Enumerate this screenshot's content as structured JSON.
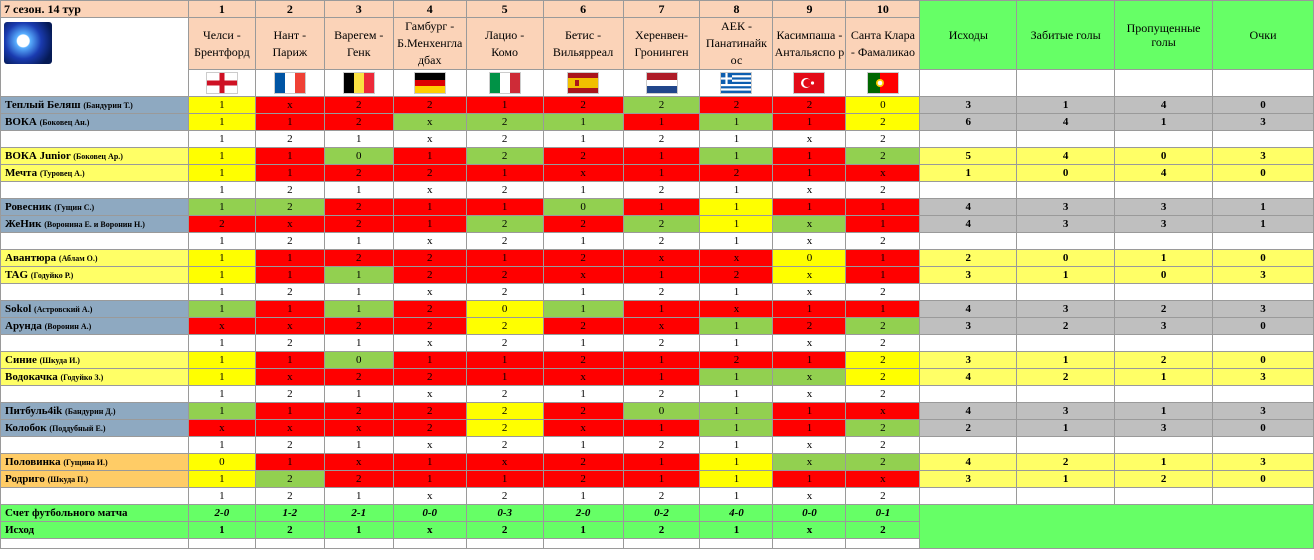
{
  "title": "7 сезон. 14 тур",
  "matches": [
    {
      "num": "1",
      "home": "Челси -",
      "away": "Брентфорд",
      "flag": "england",
      "result": "2-0",
      "outcome": "1"
    },
    {
      "num": "2",
      "home": "Нант -",
      "away": "Париж",
      "flag": "france",
      "result": "1-2",
      "outcome": "2"
    },
    {
      "num": "3",
      "home": "Варегем -",
      "away": "Генк",
      "flag": "belgium",
      "result": "2-1",
      "outcome": "1"
    },
    {
      "num": "4",
      "home": "Гамбург -",
      "away": "Б.Менхенгла дбах",
      "flag": "germany",
      "result": "0-0",
      "outcome": "x"
    },
    {
      "num": "5",
      "home": "Лацио -",
      "away": "Комо",
      "flag": "italy",
      "result": "0-3",
      "outcome": "2"
    },
    {
      "num": "6",
      "home": "Бетис -",
      "away": "Вильярреал",
      "flag": "spain",
      "result": "2-0",
      "outcome": "1"
    },
    {
      "num": "7",
      "home": "Херенвен-",
      "away": "Гронинген",
      "flag": "netherlands",
      "result": "0-2",
      "outcome": "2"
    },
    {
      "num": "8",
      "home": "АЕК -",
      "away": "Панатинайк ос",
      "flag": "greece",
      "result": "4-0",
      "outcome": "1"
    },
    {
      "num": "9",
      "home": "Касимпаша -",
      "away": "Антальяспо р",
      "flag": "turkey",
      "result": "0-0",
      "outcome": "x"
    },
    {
      "num": "10",
      "home": "Санта Клара",
      "away": "- Фамаликао",
      "flag": "portugal",
      "result": "0-1",
      "outcome": "2"
    }
  ],
  "stat_headers": [
    "Исходы",
    "Забитые голы",
    "Пропущенные голы",
    "Очки"
  ],
  "sub_row": [
    "1",
    "2",
    "1",
    "x",
    "2",
    "1",
    "2",
    "1",
    "x",
    "2"
  ],
  "groups": [
    {
      "shade": "grey",
      "players": [
        {
          "name": "Теплый Беляш",
          "owner": "(Бандурин Т.)",
          "picks": [
            "1",
            "x",
            "2",
            "2",
            "1",
            "2",
            "2",
            "2",
            "2",
            "0"
          ],
          "colors": [
            "y",
            "r",
            "r",
            "r",
            "r",
            "r",
            "g",
            "r",
            "r",
            "y"
          ],
          "stats": [
            "3",
            "1",
            "4",
            "0"
          ]
        },
        {
          "name": "ВОКА",
          "owner": "(Боковец Ан.)",
          "picks": [
            "1",
            "1",
            "2",
            "x",
            "2",
            "1",
            "1",
            "1",
            "1",
            "2"
          ],
          "colors": [
            "y",
            "r",
            "r",
            "g",
            "g",
            "g",
            "r",
            "g",
            "r",
            "y"
          ],
          "stats": [
            "6",
            "4",
            "1",
            "3"
          ]
        }
      ]
    },
    {
      "shade": "ylw",
      "players": [
        {
          "name": "ВОКА Junior",
          "owner": "(Боковец Ар.)",
          "picks": [
            "1",
            "1",
            "0",
            "1",
            "2",
            "2",
            "1",
            "1",
            "1",
            "2"
          ],
          "colors": [
            "y",
            "r",
            "g",
            "r",
            "g",
            "r",
            "r",
            "g",
            "r",
            "g"
          ],
          "stats": [
            "5",
            "4",
            "0",
            "3"
          ]
        },
        {
          "name": "Мечта",
          "owner": "(Туровец А.)",
          "picks": [
            "1",
            "1",
            "2",
            "2",
            "1",
            "x",
            "1",
            "2",
            "1",
            "x"
          ],
          "colors": [
            "y",
            "r",
            "r",
            "r",
            "r",
            "r",
            "r",
            "r",
            "r",
            "r"
          ],
          "stats": [
            "1",
            "0",
            "4",
            "0"
          ]
        }
      ]
    },
    {
      "shade": "grey",
      "players": [
        {
          "name": "Ровесник",
          "owner": "(Гущин С.)",
          "picks": [
            "1",
            "2",
            "2",
            "1",
            "1",
            "0",
            "1",
            "1",
            "1",
            "1"
          ],
          "colors": [
            "g",
            "g",
            "r",
            "r",
            "r",
            "g",
            "r",
            "y",
            "r",
            "r"
          ],
          "stats": [
            "4",
            "3",
            "3",
            "1"
          ]
        },
        {
          "name": "ЖеНик",
          "owner": "(Воронина Е. и Воронин Н.)",
          "picks": [
            "2",
            "x",
            "2",
            "1",
            "2",
            "2",
            "2",
            "1",
            "x",
            "1"
          ],
          "colors": [
            "r",
            "r",
            "r",
            "r",
            "g",
            "r",
            "g",
            "y",
            "g",
            "r"
          ],
          "stats": [
            "4",
            "3",
            "3",
            "1"
          ]
        }
      ]
    },
    {
      "shade": "ylw",
      "players": [
        {
          "name": "Авантюра",
          "owner": "(Аблам О.)",
          "picks": [
            "1",
            "1",
            "2",
            "2",
            "1",
            "2",
            "x",
            "x",
            "0",
            "1"
          ],
          "colors": [
            "y",
            "r",
            "r",
            "r",
            "r",
            "r",
            "r",
            "r",
            "y",
            "r"
          ],
          "stats": [
            "2",
            "0",
            "1",
            "0"
          ]
        },
        {
          "name": "TAG",
          "owner": "(Годуйко Р.)",
          "picks": [
            "1",
            "1",
            "1",
            "2",
            "2",
            "x",
            "1",
            "2",
            "x",
            "1"
          ],
          "colors": [
            "y",
            "r",
            "g",
            "r",
            "r",
            "r",
            "r",
            "r",
            "y",
            "r"
          ],
          "stats": [
            "3",
            "1",
            "0",
            "3"
          ]
        }
      ]
    },
    {
      "shade": "grey",
      "players": [
        {
          "name": "Sokol",
          "owner": "(Астровский А.)",
          "picks": [
            "1",
            "1",
            "1",
            "2",
            "0",
            "1",
            "1",
            "x",
            "1",
            "1"
          ],
          "colors": [
            "g",
            "r",
            "g",
            "r",
            "y",
            "g",
            "r",
            "r",
            "r",
            "r"
          ],
          "stats": [
            "4",
            "3",
            "2",
            "3"
          ]
        },
        {
          "name": "Арунда",
          "owner": "(Воронин А.)",
          "picks": [
            "x",
            "x",
            "2",
            "2",
            "2",
            "2",
            "x",
            "1",
            "2",
            "2"
          ],
          "colors": [
            "r",
            "r",
            "r",
            "r",
            "y",
            "r",
            "r",
            "g",
            "r",
            "g"
          ],
          "stats": [
            "3",
            "2",
            "3",
            "0"
          ]
        }
      ]
    },
    {
      "shade": "ylw",
      "players": [
        {
          "name": "Синие",
          "owner": "(Шкуда И.)",
          "picks": [
            "1",
            "1",
            "0",
            "1",
            "1",
            "2",
            "1",
            "2",
            "1",
            "2"
          ],
          "colors": [
            "y",
            "r",
            "g",
            "r",
            "r",
            "r",
            "r",
            "r",
            "r",
            "y"
          ],
          "stats": [
            "3",
            "1",
            "2",
            "0"
          ]
        },
        {
          "name": "Водокачка",
          "owner": "(Годуйко З.)",
          "picks": [
            "1",
            "x",
            "2",
            "2",
            "1",
            "x",
            "1",
            "1",
            "x",
            "2"
          ],
          "colors": [
            "y",
            "r",
            "r",
            "r",
            "r",
            "r",
            "r",
            "g",
            "g",
            "y"
          ],
          "stats": [
            "4",
            "2",
            "1",
            "3"
          ]
        }
      ]
    },
    {
      "shade": "grey",
      "players": [
        {
          "name": "Питбуль4ik",
          "owner": "(Бандурин Д.)",
          "picks": [
            "1",
            "1",
            "2",
            "2",
            "2",
            "2",
            "0",
            "1",
            "1",
            "x"
          ],
          "colors": [
            "g",
            "r",
            "r",
            "r",
            "y",
            "r",
            "g",
            "g",
            "r",
            "r"
          ],
          "stats": [
            "4",
            "3",
            "1",
            "3"
          ]
        },
        {
          "name": "Колобок",
          "owner": "(Поддубный Е.)",
          "picks": [
            "x",
            "x",
            "x",
            "2",
            "2",
            "x",
            "1",
            "1",
            "1",
            "2"
          ],
          "colors": [
            "r",
            "r",
            "r",
            "r",
            "y",
            "r",
            "r",
            "g",
            "r",
            "g"
          ],
          "stats": [
            "2",
            "1",
            "3",
            "0"
          ]
        }
      ]
    },
    {
      "shade": "orange",
      "players": [
        {
          "name": "Половинка",
          "owner": "(Гущина И.)",
          "picks": [
            "0",
            "1",
            "x",
            "1",
            "x",
            "2",
            "1",
            "1",
            "x",
            "2"
          ],
          "colors": [
            "y",
            "r",
            "r",
            "r",
            "r",
            "r",
            "r",
            "y",
            "g",
            "g"
          ],
          "stats": [
            "4",
            "2",
            "1",
            "3"
          ]
        },
        {
          "name": "Родриго",
          "owner": "(Шкуда П.)",
          "picks": [
            "1",
            "2",
            "2",
            "1",
            "1",
            "2",
            "1",
            "1",
            "1",
            "x"
          ],
          "colors": [
            "y",
            "g",
            "r",
            "r",
            "r",
            "r",
            "r",
            "y",
            "r",
            "r"
          ],
          "stats": [
            "3",
            "1",
            "2",
            "0"
          ]
        }
      ]
    }
  ],
  "footer": {
    "score_label": "Счет футбольного матча",
    "outcome_label": "Исход"
  },
  "colors": {
    "red": "#ff0000",
    "yellow": "#ffff00",
    "green": "#92d050",
    "header": "#fbd3b8",
    "stat_green": "#66ff66",
    "grey": "#bfbfbf"
  }
}
